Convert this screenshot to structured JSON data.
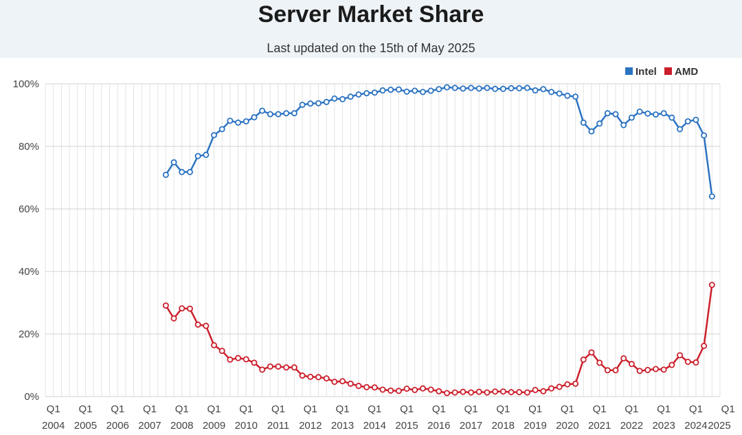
{
  "header": {
    "title": "Server Market Share",
    "subtitle": "Last updated on the 15th of May 2025"
  },
  "colors": {
    "intel": "#2b73c2",
    "amd": "#cc1f2b",
    "header_bg": "#eef3f7",
    "grid": "#d9d9d9"
  },
  "chart_data": {
    "type": "line",
    "title": "Server Market Share",
    "xlabel": "",
    "ylabel": "",
    "ylim": [
      0,
      100
    ],
    "y_ticks": [
      "0%",
      "20%",
      "40%",
      "60%",
      "80%",
      "100%"
    ],
    "x_ticks": [
      {
        "q": "Q1",
        "year": "2004"
      },
      {
        "q": "Q1",
        "year": "2005"
      },
      {
        "q": "Q1",
        "year": "2006"
      },
      {
        "q": "Q1",
        "year": "2007"
      },
      {
        "q": "Q1",
        "year": "2008"
      },
      {
        "q": "Q1",
        "year": "2009"
      },
      {
        "q": "Q1",
        "year": "2010"
      },
      {
        "q": "Q1",
        "year": "2011"
      },
      {
        "q": "Q1",
        "year": "2012"
      },
      {
        "q": "Q1",
        "year": "2013"
      },
      {
        "q": "Q1",
        "year": "2014"
      },
      {
        "q": "Q1",
        "year": "2015"
      },
      {
        "q": "Q1",
        "year": "2016"
      },
      {
        "q": "Q1",
        "year": "2017"
      },
      {
        "q": "Q1",
        "year": "2018"
      },
      {
        "q": "Q1",
        "year": "2019"
      },
      {
        "q": "Q1",
        "year": "2020"
      },
      {
        "q": "Q1",
        "year": "2021"
      },
      {
        "q": "Q1",
        "year": "2022"
      },
      {
        "q": "Q1",
        "year": "2023"
      },
      {
        "q": "Q1",
        "year": "2024"
      },
      {
        "q": "Q1",
        "year": "2025"
      }
    ],
    "quarters_total": 85,
    "start_quarter_index": 15,
    "legend": {
      "position": "top-right",
      "entries": [
        "Intel",
        "AMD"
      ]
    },
    "grid": true,
    "series": [
      {
        "name": "Intel",
        "values": [
          70.9,
          74.9,
          71.8,
          71.8,
          76.9,
          77.3,
          83.6,
          85.5,
          88.2,
          87.6,
          88.0,
          89.3,
          91.4,
          90.3,
          90.3,
          90.6,
          90.6,
          93.3,
          93.7,
          93.8,
          94.2,
          95.3,
          95.1,
          95.9,
          96.6,
          97.0,
          97.2,
          97.9,
          98.1,
          98.2,
          97.5,
          97.8,
          97.4,
          97.8,
          98.3,
          98.9,
          98.7,
          98.5,
          98.7,
          98.5,
          98.7,
          98.4,
          98.4,
          98.6,
          98.6,
          98.7,
          97.9,
          98.3,
          97.4,
          96.9,
          96.2,
          95.9,
          87.6,
          84.8,
          87.3,
          90.6,
          90.3,
          86.8,
          89.2,
          91.1,
          90.5,
          90.2,
          90.6,
          89.2,
          85.5,
          88.0,
          88.5,
          83.5,
          64.0
        ]
      },
      {
        "name": "AMD",
        "values": [
          29.1,
          25.0,
          28.2,
          28.1,
          23.0,
          22.6,
          16.4,
          14.6,
          11.8,
          12.3,
          11.9,
          10.8,
          8.6,
          9.6,
          9.6,
          9.3,
          9.3,
          6.7,
          6.3,
          6.2,
          5.8,
          4.7,
          4.9,
          4.1,
          3.4,
          3.0,
          2.9,
          2.2,
          1.9,
          1.8,
          2.5,
          2.1,
          2.6,
          2.2,
          1.7,
          1.1,
          1.3,
          1.5,
          1.3,
          1.5,
          1.3,
          1.6,
          1.6,
          1.4,
          1.4,
          1.3,
          2.1,
          1.7,
          2.6,
          3.1,
          3.9,
          4.1,
          11.8,
          14.1,
          10.8,
          8.4,
          8.4,
          12.2,
          10.4,
          8.2,
          8.5,
          8.8,
          8.6,
          10.1,
          13.2,
          11.1,
          10.9,
          16.2,
          35.7
        ]
      }
    ]
  }
}
